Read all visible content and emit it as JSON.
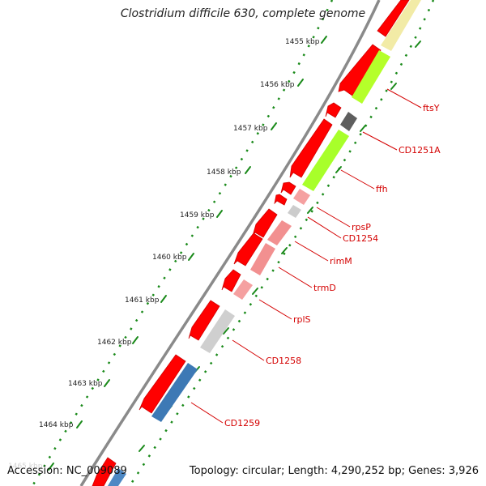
{
  "title": "Clostridium difficile 630, complete genome",
  "footer": {
    "accession": "Accession: NC_009089",
    "summary": "Topology: circular; Length: 4,290,252 bp; Genes: 3,926"
  },
  "ruler": {
    "labels": [
      "1455 kbp",
      "1456 kbp",
      "1457 kbp",
      "1458 kbp",
      "1459 kbp",
      "1460 kbp",
      "1461 kbp",
      "1462 kbp",
      "1463 kbp",
      "1464 kbp",
      "1465 kbp"
    ]
  },
  "gene_labels": [
    "ftsY",
    "CD1251A",
    "ffh",
    "rpsP",
    "CD1254",
    "rimM",
    "trmD",
    "rplS",
    "CD1258",
    "CD1259"
  ],
  "colors": {
    "backbone": "#8a8a8a",
    "cds_arrow": "#ff0000",
    "ruler_dots": "#1a8a1a",
    "label": "#d40000"
  }
}
